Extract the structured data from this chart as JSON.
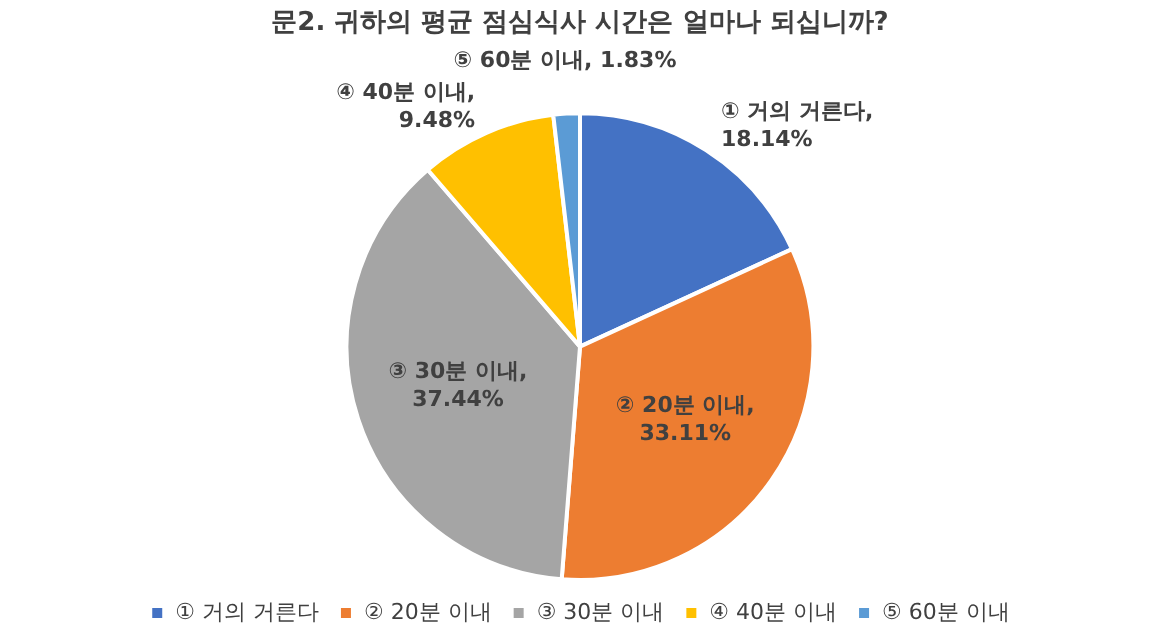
{
  "chart_data": {
    "type": "pie",
    "title": "문2. 귀하의 평균 점심식사 시간은 얼마나 되십니까?",
    "categories": [
      "① 거의 거른다",
      "② 20분 이내",
      "③ 30분 이내",
      "④ 40분 이내",
      "⑤ 60분 이내"
    ],
    "values": [
      18.14,
      33.11,
      37.44,
      9.48,
      1.83
    ],
    "colors": [
      "#4472c4",
      "#ed7d31",
      "#a5a5a5",
      "#ffc000",
      "#5b9bd5"
    ],
    "value_labels": [
      "① 거의 거른다, 18.14%",
      "② 20분 이내, 33.11%",
      "③ 30분 이내, 37.44%",
      "④ 40분 이내, 9.48%",
      "⑤ 60분 이내, 1.83%"
    ],
    "legend": "bottom"
  }
}
